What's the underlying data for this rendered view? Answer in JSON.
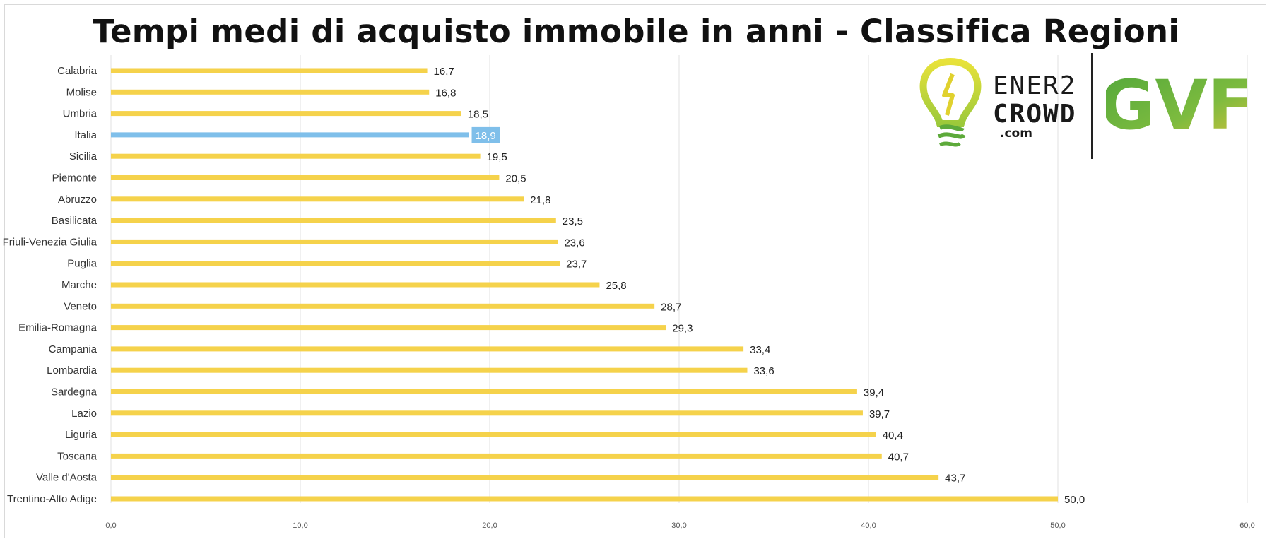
{
  "title": "Tempi medi di acquisto immobile in anni - Classifica Regioni",
  "logos": {
    "ener2crowd": {
      "line1": "ENER2",
      "line2": "CROWD",
      "line3": ".com"
    },
    "gvf": "GVF"
  },
  "colors": {
    "bar": "#F5D24B",
    "highlight": "#7FBFEA",
    "grid": "#e0e0e0",
    "text": "#333333"
  },
  "chart_data": {
    "type": "bar",
    "orientation": "horizontal",
    "title": "Tempi medi di acquisto immobile in anni - Classifica Regioni",
    "xlabel": "",
    "ylabel": "",
    "xlim": [
      0,
      60
    ],
    "x_ticks": [
      "0,0",
      "10,0",
      "20,0",
      "30,0",
      "40,0",
      "50,0",
      "60,0"
    ],
    "grid": "vertical",
    "categories": [
      "Calabria",
      "Molise",
      "Umbria",
      "Italia",
      "Sicilia",
      "Piemonte",
      "Abruzzo",
      "Basilicata",
      "Friuli-Venezia Giulia",
      "Puglia",
      "Marche",
      "Veneto",
      "Emilia-Romagna",
      "Campania",
      "Lombardia",
      "Sardegna",
      "Lazio",
      "Liguria",
      "Toscana",
      "Valle d'Aosta",
      "Trentino-Alto Adige"
    ],
    "values": [
      16.7,
      16.8,
      18.5,
      18.9,
      19.5,
      20.5,
      21.8,
      23.5,
      23.6,
      23.7,
      25.8,
      28.7,
      29.3,
      33.4,
      33.6,
      39.4,
      39.7,
      40.4,
      40.7,
      43.7,
      50.0
    ],
    "value_labels": [
      "16,7",
      "16,8",
      "18,5",
      "18,9",
      "19,5",
      "20,5",
      "21,8",
      "23,5",
      "23,6",
      "23,7",
      "25,8",
      "28,7",
      "29,3",
      "33,4",
      "33,6",
      "39,4",
      "39,7",
      "40,4",
      "40,7",
      "43,7",
      "50,0"
    ],
    "highlight": "Italia"
  }
}
